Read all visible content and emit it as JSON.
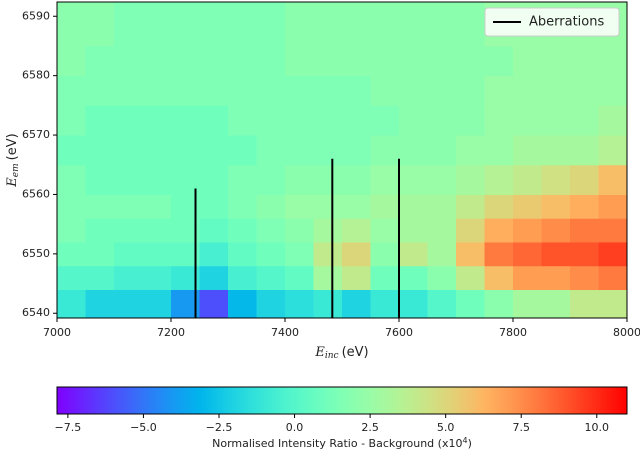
{
  "chart_data": {
    "type": "heatmap",
    "colormap": "rainbow",
    "xlabel": {
      "symbol": "E",
      "subscript": "inc",
      "unit": "(eV)"
    },
    "ylabel": {
      "symbol": "E",
      "subscript": "em",
      "unit": "(eV)"
    },
    "xlim": [
      7000,
      8000
    ],
    "xticks": [
      7000,
      7200,
      7400,
      7600,
      7800,
      8000
    ],
    "ylim": [
      6539.2,
      6592.4
    ],
    "yticks": [
      6540,
      6550,
      6560,
      6570,
      6580,
      6590
    ],
    "xbins": [
      7000,
      7050,
      7100,
      7150,
      7200,
      7250,
      7300,
      7350,
      7400,
      7450,
      7500,
      7550,
      7600,
      7650,
      7700,
      7750,
      7800,
      7850,
      7900,
      7950,
      8000
    ],
    "ybins": [
      6539.2,
      6544,
      6548,
      6552,
      6556,
      6560,
      6565,
      6570,
      6575,
      6580,
      6585,
      6592.4
    ],
    "z": [
      [
        -1,
        -2,
        -2,
        -2,
        -4,
        -6,
        -3,
        -2,
        -1.5,
        -1,
        -2,
        -1,
        -1,
        0,
        1,
        2,
        3,
        3,
        4,
        4
      ],
      [
        0,
        0,
        -0.5,
        -0.5,
        -1,
        -2,
        -0.5,
        0,
        0.5,
        3,
        4,
        1,
        1,
        2,
        4,
        6,
        7,
        7,
        7.5,
        8
      ],
      [
        1,
        1,
        0.5,
        0.5,
        0.5,
        -0.5,
        0.5,
        1,
        1.5,
        4,
        5,
        2,
        4,
        3,
        6,
        8,
        8.5,
        9,
        9,
        9.5
      ],
      [
        1.5,
        1,
        1,
        1,
        1,
        0.5,
        1,
        1.5,
        2,
        3,
        3.5,
        2.5,
        3,
        3,
        5,
        6.5,
        7,
        7.5,
        8,
        8
      ],
      [
        1.5,
        1.5,
        1.5,
        1.5,
        1,
        1,
        1.5,
        2,
        2.5,
        2.5,
        2.5,
        3,
        3,
        3,
        4,
        5,
        5.5,
        6,
        6.5,
        7
      ],
      [
        1.5,
        1,
        1,
        1,
        1,
        1,
        1.5,
        1.5,
        2,
        2,
        2,
        2.5,
        2.5,
        2.5,
        3,
        3.5,
        4,
        4.5,
        5,
        6
      ],
      [
        1,
        1,
        1,
        1,
        1,
        1,
        1,
        1.5,
        1.5,
        1.5,
        1.5,
        2,
        2,
        2,
        2.5,
        2.5,
        3,
        3,
        3,
        3.5
      ],
      [
        1.5,
        1,
        1,
        1,
        1,
        1,
        1.5,
        1.5,
        1.5,
        1.5,
        1.5,
        1.5,
        2,
        2,
        2,
        2.5,
        2.5,
        2.5,
        2.5,
        3
      ],
      [
        1.5,
        1.5,
        1.5,
        1.5,
        1.5,
        1.5,
        1.5,
        1.5,
        1.5,
        1.5,
        1.5,
        2,
        2,
        2,
        2,
        2.5,
        2.5,
        2.5,
        2.5,
        2.5
      ],
      [
        2,
        1.5,
        1.5,
        1.5,
        1.5,
        1.5,
        1.5,
        1.5,
        2,
        2,
        2,
        2,
        2,
        2,
        2,
        2,
        2.5,
        2.5,
        2.5,
        2.5
      ],
      [
        2,
        2,
        1.5,
        1.5,
        1.5,
        1.5,
        1.5,
        1.5,
        2,
        2,
        2,
        2,
        2,
        2,
        2,
        2.5,
        2.5,
        2.5,
        2.5,
        2.5
      ]
    ],
    "aberrations": {
      "name": "Aberrations",
      "color": "#000000",
      "x": [
        7243,
        7483,
        7600
      ],
      "ymax": [
        6561,
        6566,
        6566
      ]
    },
    "legend": "upper right",
    "clim": [
      -7.86,
      11.0
    ],
    "cticks": [
      {
        "value": -7.5,
        "label": "−7.5"
      },
      {
        "value": -5,
        "label": "−5.0"
      },
      {
        "value": -2.5,
        "label": "−2.5"
      },
      {
        "value": 0,
        "label": "0.0"
      },
      {
        "value": 2.5,
        "label": "2.5"
      },
      {
        "value": 5,
        "label": "5.0"
      },
      {
        "value": 7.5,
        "label": "7.5"
      },
      {
        "value": 10,
        "label": "10.0"
      }
    ],
    "clabel": {
      "text": "Normalised Intensity Ratio - Background (x10",
      "superscript": "4",
      "close": ")"
    }
  }
}
